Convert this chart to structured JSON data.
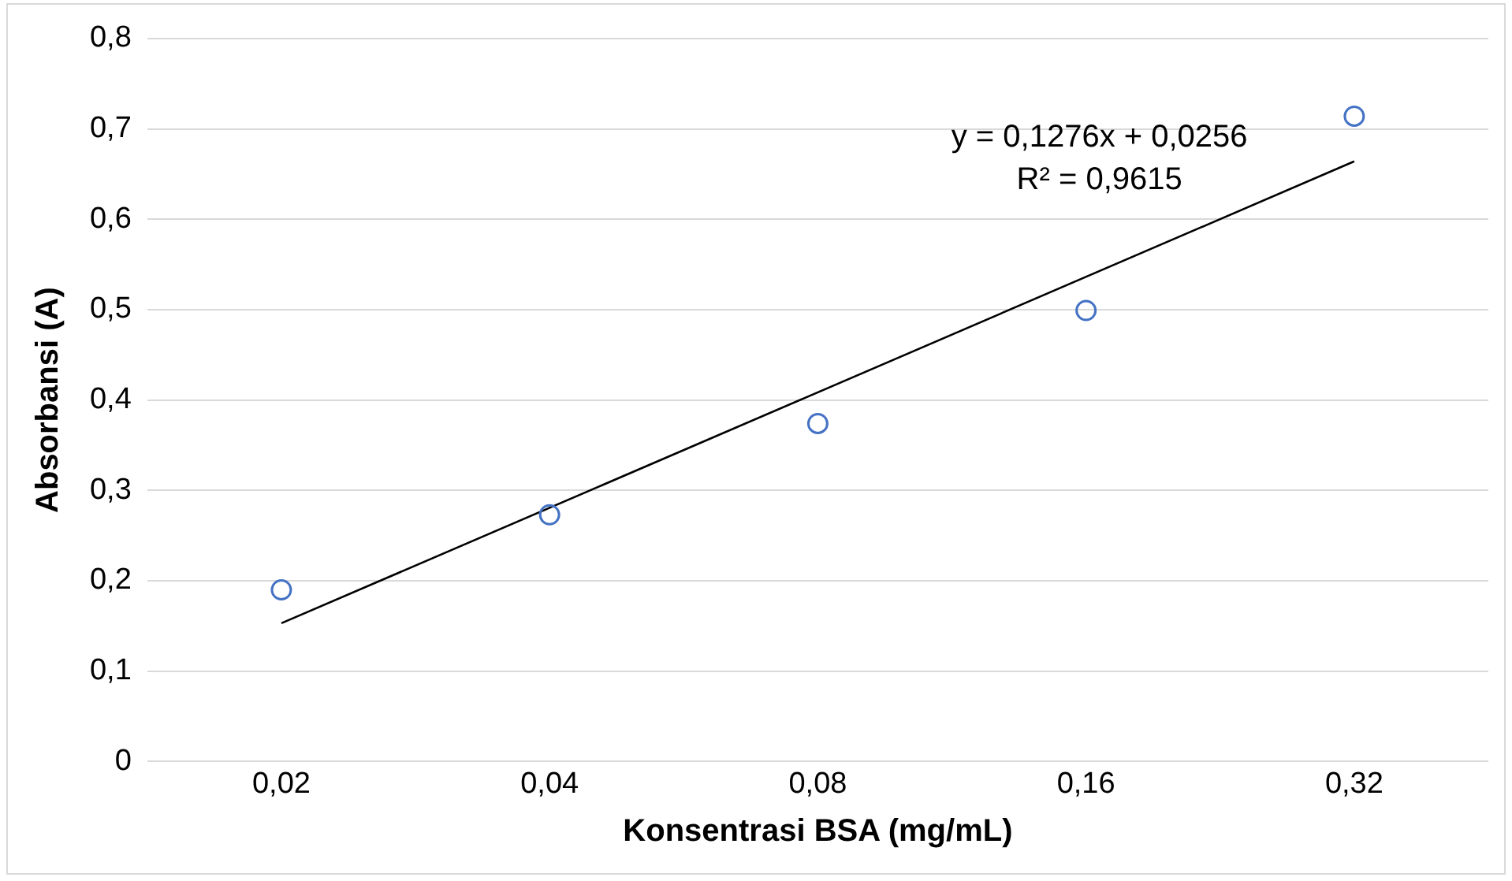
{
  "chart_data": {
    "type": "scatter",
    "xlabel": "Konsentrasi BSA (mg/mL)",
    "ylabel": "Absorbansi (A)",
    "categories": [
      "0,02",
      "0,04",
      "0,08",
      "0,16",
      "0,32"
    ],
    "series": [
      {
        "color": "#4472c4",
        "marker": "circle",
        "values": [
          0.19,
          0.273,
          0.374,
          0.499,
          0.714
        ]
      },
      {
        "type": "line",
        "color": "#000000",
        "marker": "none",
        "line_style": "solid",
        "x": [
          "0,02",
          "0,32"
        ],
        "values": [
          0.153,
          0.664
        ]
      }
    ],
    "ylim": [
      0,
      0.8
    ],
    "yticks": [
      0,
      {
        "value": 0.1,
        "label": "0,1"
      },
      {
        "value": 0.2,
        "label": "0,2"
      },
      {
        "value": 0.3,
        "label": "0,3"
      },
      {
        "value": 0.4,
        "label": "0,4"
      },
      {
        "value": 0.5,
        "label": "0,5"
      },
      {
        "value": 0.6,
        "label": "0,6"
      },
      {
        "value": 0.7,
        "label": "0,7"
      },
      {
        "value": 0.8,
        "label": "0,8"
      }
    ],
    "grid": "y",
    "legend": false,
    "annotations": [
      "y = 0,1276x + 0,0256",
      "R² = 0,9615"
    ]
  }
}
